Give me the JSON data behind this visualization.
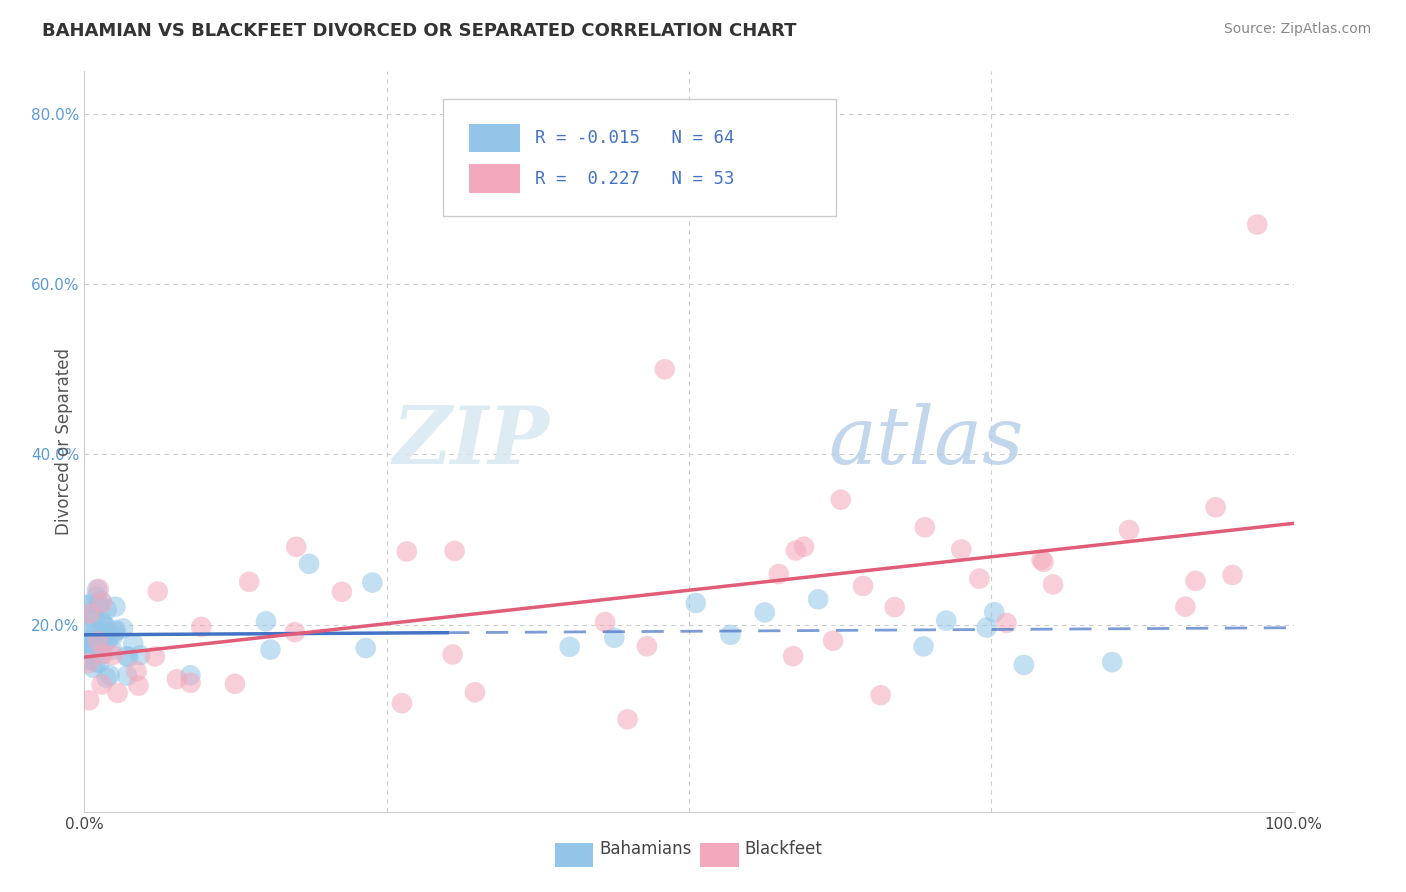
{
  "title": "BAHAMIAN VS BLACKFEET DIVORCED OR SEPARATED CORRELATION CHART",
  "source": "Source: ZipAtlas.com",
  "ylabel": "Divorced or Separated",
  "legend_labels": [
    "Bahamians",
    "Blackfeet"
  ],
  "legend_R": [
    -0.015,
    0.227
  ],
  "legend_N": [
    64,
    53
  ],
  "blue_color": "#92C5E8",
  "pink_color": "#F4A8BB",
  "blue_line_color": "#4472C4",
  "pink_line_color": "#E05C78",
  "watermark_zip": "ZIP",
  "watermark_atlas": "atlas",
  "xlim": [
    0.0,
    1.0
  ],
  "ylim": [
    -0.02,
    0.85
  ],
  "yticks": [
    0.0,
    0.2,
    0.4,
    0.6,
    0.8
  ],
  "ytick_labels": [
    "",
    "20.0%",
    "40.0%",
    "60.0%",
    "80.0%"
  ],
  "xtick_labels": [
    "0.0%",
    "",
    "",
    "",
    "100.0%"
  ],
  "grid_color": "#CCCCCC",
  "background_color": "#FFFFFF",
  "title_fontsize": 13,
  "source_fontsize": 10,
  "tick_fontsize": 11,
  "ylabel_fontsize": 12
}
